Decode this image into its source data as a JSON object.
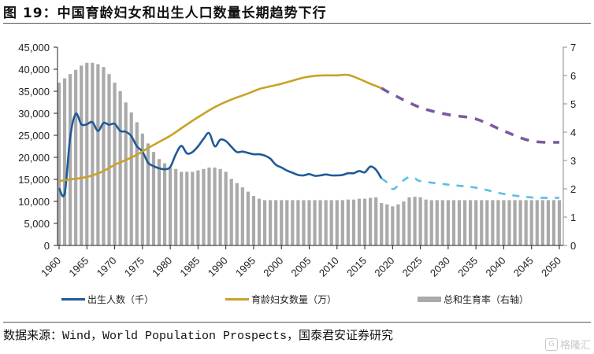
{
  "header": {
    "title": "图 19：中国育龄妇女和出生人口数量长期趋势下行"
  },
  "source": {
    "text": "数据来源：Wind，World Population Prospects，国泰君安证券研究"
  },
  "watermark": {
    "icon": "gelonghui-logo-icon",
    "text": "格隆汇"
  },
  "legend": {
    "items": [
      {
        "label": "出生人数（千）",
        "color": "#1f5a96",
        "kind": "line"
      },
      {
        "label": "育龄妇女数量（万）",
        "color": "#c9a227",
        "kind": "line"
      },
      {
        "label": "总和生育率（右轴）",
        "color": "#aaaaaa",
        "kind": "bar"
      }
    ]
  },
  "chart_data": {
    "type": "bar+line",
    "title": "图 19：中国育龄妇女和出生人口数量长期趋势下行",
    "xlabel": "",
    "ylabel_left": "",
    "ylabel_right": "",
    "x_range": [
      1960,
      2050
    ],
    "x_ticks": [
      "1960",
      "1965",
      "1970",
      "1975",
      "1980",
      "1985",
      "1990",
      "1995",
      "2000",
      "2005",
      "2010",
      "2015",
      "2020",
      "2025",
      "2030",
      "2035",
      "2040",
      "2045",
      "2050"
    ],
    "ylim_left": [
      0,
      45000
    ],
    "y_ticks_left": [
      "0",
      "5,000",
      "10,000",
      "15,000",
      "20,000",
      "25,000",
      "30,000",
      "35,000",
      "40,000",
      "45,000"
    ],
    "ylim_right": [
      0,
      7
    ],
    "y_ticks_right": [
      "0",
      "1",
      "2",
      "3",
      "4",
      "5",
      "6",
      "7"
    ],
    "grid": false,
    "legend_position": "bottom",
    "series": [
      {
        "name": "出生人数（千）",
        "axis": "left",
        "type": "line",
        "color": "#1f5a96",
        "projection_color": "#5bbfe0",
        "x": [
          1960,
          1961,
          1962,
          1963,
          1964,
          1965,
          1966,
          1967,
          1968,
          1969,
          1970,
          1971,
          1972,
          1973,
          1974,
          1975,
          1976,
          1977,
          1978,
          1979,
          1980,
          1981,
          1982,
          1983,
          1984,
          1985,
          1986,
          1987,
          1988,
          1989,
          1990,
          1991,
          1992,
          1993,
          1994,
          1995,
          1996,
          1997,
          1998,
          1999,
          2000,
          2001,
          2002,
          2003,
          2004,
          2005,
          2006,
          2007,
          2008,
          2009,
          2010,
          2011,
          2012,
          2013,
          2014,
          2015,
          2016,
          2017,
          2018
        ],
        "values": [
          13000,
          11800,
          24600,
          29900,
          27500,
          27500,
          28000,
          26000,
          27800,
          27400,
          27600,
          26000,
          25800,
          24800,
          22500,
          21300,
          18800,
          18000,
          17500,
          17300,
          17800,
          20700,
          22600,
          20900,
          21200,
          22500,
          24200,
          25500,
          22500,
          24000,
          23700,
          22400,
          21200,
          21300,
          21000,
          20700,
          20700,
          20400,
          19700,
          18300,
          17700,
          17000,
          16500,
          16000,
          15900,
          16200,
          15800,
          15900,
          16100,
          15900,
          15900,
          16000,
          16400,
          16400,
          16900,
          16600,
          17900,
          17200,
          15200
        ],
        "projection_x": [
          2018,
          2019,
          2020,
          2021,
          2022,
          2023,
          2024,
          2025,
          2030,
          2035,
          2040,
          2045,
          2050
        ],
        "projection_values": [
          15200,
          14300,
          12800,
          13600,
          14800,
          15500,
          15300,
          14600,
          13800,
          13100,
          11700,
          10900,
          10800
        ]
      },
      {
        "name": "育龄妇女数量（万）",
        "axis": "left",
        "type": "line",
        "color": "#c9a227",
        "projection_color": "#7a5aa0",
        "x": [
          1960,
          1962,
          1964,
          1966,
          1968,
          1970,
          1972,
          1974,
          1976,
          1978,
          1980,
          1982,
          1984,
          1986,
          1988,
          1990,
          1992,
          1994,
          1996,
          1998,
          2000,
          2002,
          2004,
          2006,
          2008,
          2010,
          2012,
          2014,
          2016,
          2018
        ],
        "values": [
          14600,
          15000,
          15300,
          15900,
          16900,
          18300,
          19400,
          20600,
          22100,
          23500,
          24900,
          26600,
          28300,
          29900,
          31400,
          32600,
          33600,
          34500,
          35500,
          36100,
          36700,
          37400,
          38100,
          38500,
          38600,
          38600,
          38700,
          37800,
          36700,
          35700
        ],
        "projection_x": [
          2018,
          2020,
          2025,
          2030,
          2035,
          2040,
          2045,
          2050
        ],
        "projection_values": [
          35700,
          34300,
          31300,
          29700,
          28700,
          26000,
          23700,
          23400
        ]
      },
      {
        "name": "总和生育率（右轴）",
        "axis": "right",
        "type": "bar",
        "color": "#aaaaaa",
        "x": [
          1960,
          1961,
          1962,
          1963,
          1964,
          1965,
          1966,
          1967,
          1968,
          1969,
          1970,
          1971,
          1972,
          1973,
          1974,
          1975,
          1976,
          1977,
          1978,
          1979,
          1980,
          1981,
          1982,
          1983,
          1984,
          1985,
          1986,
          1987,
          1988,
          1989,
          1990,
          1991,
          1992,
          1993,
          1994,
          1995,
          1996,
          1997,
          1998,
          1999,
          2000,
          2001,
          2002,
          2003,
          2004,
          2005,
          2006,
          2007,
          2008,
          2009,
          2010,
          2011,
          2012,
          2013,
          2014,
          2015,
          2016,
          2017,
          2018,
          2019,
          2020,
          2021,
          2022,
          2023,
          2024,
          2025,
          2026,
          2027,
          2028,
          2029,
          2030,
          2031,
          2032,
          2033,
          2034,
          2035,
          2036,
          2037,
          2038,
          2039,
          2040,
          2041,
          2042,
          2043,
          2044,
          2045,
          2046,
          2047,
          2048,
          2049,
          2050
        ],
        "values": [
          5.75,
          5.9,
          6.05,
          6.2,
          6.35,
          6.45,
          6.45,
          6.4,
          6.3,
          6.05,
          5.75,
          5.45,
          5.05,
          4.7,
          4.35,
          3.95,
          3.6,
          3.3,
          3.05,
          2.9,
          2.75,
          2.7,
          2.6,
          2.6,
          2.6,
          2.65,
          2.7,
          2.75,
          2.75,
          2.7,
          2.6,
          2.35,
          2.2,
          2.05,
          1.9,
          1.75,
          1.65,
          1.6,
          1.6,
          1.6,
          1.6,
          1.6,
          1.6,
          1.6,
          1.6,
          1.6,
          1.6,
          1.6,
          1.6,
          1.6,
          1.6,
          1.6,
          1.62,
          1.62,
          1.65,
          1.65,
          1.68,
          1.7,
          1.5,
          1.45,
          1.38,
          1.45,
          1.55,
          1.7,
          1.72,
          1.7,
          1.62,
          1.6,
          1.6,
          1.6,
          1.6,
          1.6,
          1.6,
          1.6,
          1.6,
          1.6,
          1.6,
          1.6,
          1.6,
          1.6,
          1.6,
          1.6,
          1.6,
          1.6,
          1.6,
          1.6,
          1.6,
          1.6,
          1.6,
          1.6,
          1.6
        ]
      }
    ]
  }
}
